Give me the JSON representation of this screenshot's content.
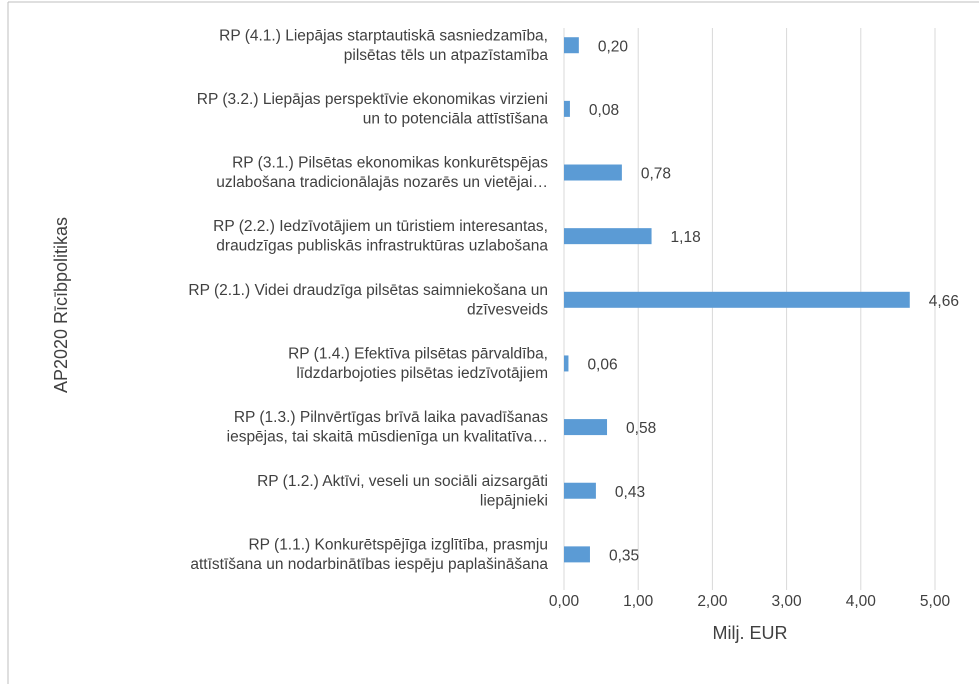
{
  "chart_data": {
    "type": "barh",
    "xlabel": "Milj. EUR",
    "ylabel": "AP2020 Rīcībpolitikas",
    "categories": [
      [
        "RP (4.1.) Liepājas starptautiskā sasniedzamība,",
        "pilsētas tēls un atpazīstamība"
      ],
      [
        "RP (3.2.) Liepājas perspektīvie ekonomikas virzieni",
        "un to potenciāla attīstīšana"
      ],
      [
        "RP (3.1.) Pilsētas ekonomikas konkurētspējas",
        "uzlabošana tradicionālajās nozarēs un vietējai…"
      ],
      [
        "RP (2.2.) Iedzīvotājiem un tūristiem interesantas,",
        "draudzīgas publiskās infrastruktūras uzlabošana"
      ],
      [
        "RP (2.1.) Videi draudzīga pilsētas saimniekošana un",
        "dzīvesveids"
      ],
      [
        "RP (1.4.) Efektīva pilsētas pārvaldība,",
        "līdzdarbojoties pilsētas iedzīvotājiem"
      ],
      [
        "RP (1.3.) Pilnvērtīgas brīvā laika pavadīšanas",
        "iespējas, tai skaitā mūsdienīga un kvalitatīva…"
      ],
      [
        "RP (1.2.) Aktīvi, veseli un sociāli aizsargāti",
        "liepājnieki"
      ],
      [
        "RP (1.1.) Konkurētspējīga izglītība, prasmju",
        "attīstīšana un nodarbinātības iespēju paplašināšana"
      ]
    ],
    "values": [
      0.2,
      0.08,
      0.78,
      1.18,
      4.66,
      0.06,
      0.58,
      0.43,
      0.35
    ],
    "value_labels": [
      "0,20",
      "0,08",
      "0,78",
      "1,18",
      "4,66",
      "0,06",
      "0,58",
      "0,43",
      "0,35"
    ],
    "color": "#5b9bd5",
    "xlim": [
      0,
      5
    ],
    "xticks": [
      {
        "value": 0,
        "label": "0,00"
      },
      {
        "value": 1,
        "label": "1,00"
      },
      {
        "value": 2,
        "label": "2,00"
      },
      {
        "value": 3,
        "label": "3,00"
      },
      {
        "value": 4,
        "label": "4,00"
      },
      {
        "value": 5,
        "label": "5,00"
      }
    ],
    "grid": true
  }
}
